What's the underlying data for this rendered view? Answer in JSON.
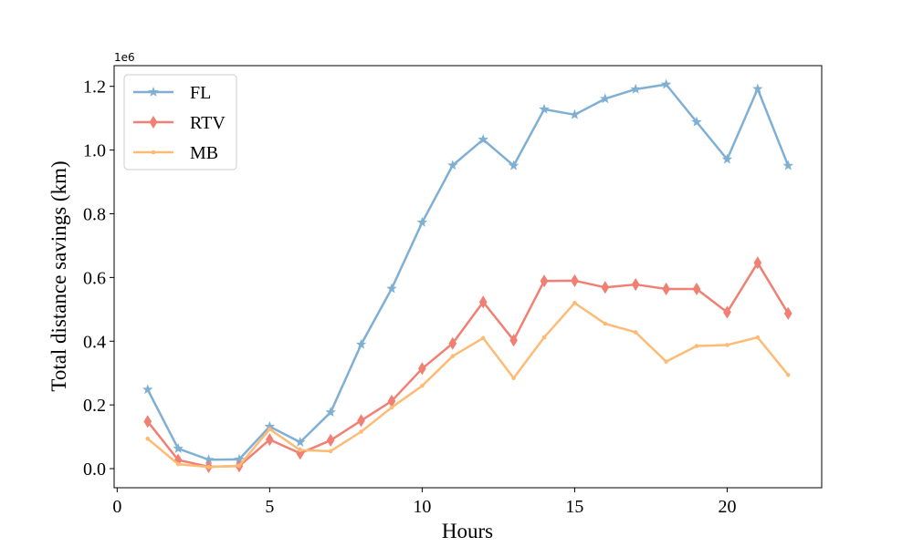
{
  "chart_data": {
    "type": "line",
    "xlabel": "Hours",
    "ylabel": "Total distance savings (km)",
    "y_offset_label": "1e6",
    "xlim": [
      -0.1,
      23.1
    ],
    "ylim": [
      -0.06,
      1.265
    ],
    "xticks": [
      0,
      5,
      10,
      15,
      20
    ],
    "xtick_labels": [
      "0",
      "5",
      "10",
      "15",
      "20"
    ],
    "yticks": [
      0.0,
      0.2,
      0.4,
      0.6,
      0.8,
      1.0,
      1.2
    ],
    "ytick_labels": [
      "0.0",
      "0.2",
      "0.4",
      "0.6",
      "0.8",
      "1.0",
      "1.2"
    ],
    "legend_position": "top-left",
    "grid": false,
    "x": [
      1,
      2,
      3,
      4,
      5,
      6,
      7,
      8,
      9,
      10,
      11,
      12,
      13,
      14,
      15,
      16,
      17,
      18,
      19,
      20,
      21,
      22
    ],
    "series": [
      {
        "name": "FL",
        "color": "#7fb0d3",
        "marker": "star",
        "values": [
          0.248,
          0.063,
          0.028,
          0.029,
          0.132,
          0.083,
          0.177,
          0.39,
          0.565,
          0.773,
          0.952,
          1.033,
          0.951,
          1.128,
          1.111,
          1.161,
          1.191,
          1.206,
          1.088,
          0.971,
          1.192,
          0.951
        ]
      },
      {
        "name": "RTV",
        "color": "#f08073",
        "marker": "diamond",
        "values": [
          0.148,
          0.027,
          0.006,
          0.008,
          0.091,
          0.048,
          0.089,
          0.151,
          0.212,
          0.314,
          0.393,
          0.523,
          0.403,
          0.589,
          0.59,
          0.569,
          0.578,
          0.564,
          0.564,
          0.491,
          0.646,
          0.487
        ]
      },
      {
        "name": "MB",
        "color": "#fdbb75",
        "marker": "dot",
        "values": [
          0.094,
          0.014,
          0.005,
          0.009,
          0.124,
          0.058,
          0.055,
          0.116,
          0.192,
          0.26,
          0.353,
          0.41,
          0.284,
          0.412,
          0.52,
          0.455,
          0.428,
          0.336,
          0.385,
          0.388,
          0.412,
          0.294
        ]
      }
    ]
  }
}
